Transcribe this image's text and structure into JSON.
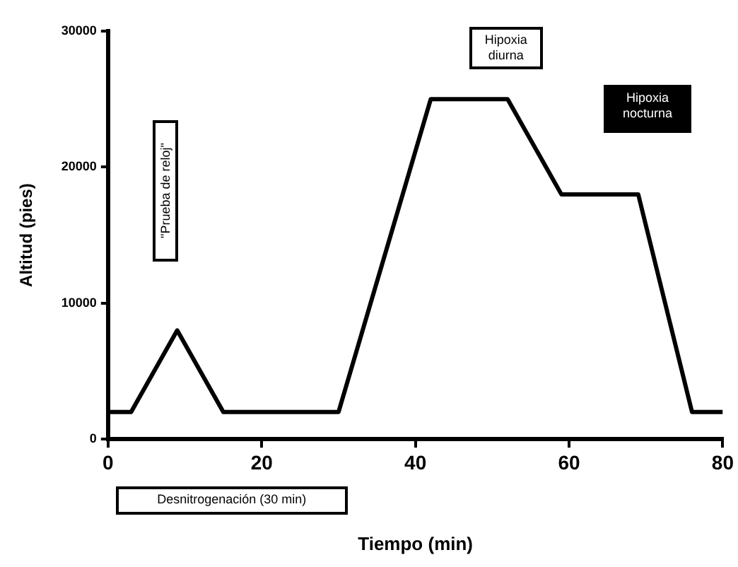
{
  "chart_data": {
    "type": "line",
    "xlabel": "Tiempo (min)",
    "ylabel": "Altitud (pies)",
    "x": [
      0,
      3,
      9,
      15,
      30,
      42,
      52,
      59,
      69,
      76,
      80
    ],
    "values": [
      2000,
      2000,
      8000,
      2000,
      2000,
      25000,
      25000,
      18000,
      18000,
      2000,
      2000
    ],
    "color": "#000000",
    "xlim": [
      0,
      80
    ],
    "xticks": [
      0,
      20,
      40,
      60,
      80
    ],
    "ylim": [
      0,
      30000
    ],
    "yticks": [
      0,
      10000,
      20000,
      30000
    ],
    "grid": false,
    "legend": false,
    "marker": "none",
    "line_style": "solid",
    "annotations": [
      "\"Prueba de reloj\"",
      "Hipoxia diurna",
      "Hipoxia nocturna",
      "Desnitrogenación (30 min)"
    ]
  }
}
